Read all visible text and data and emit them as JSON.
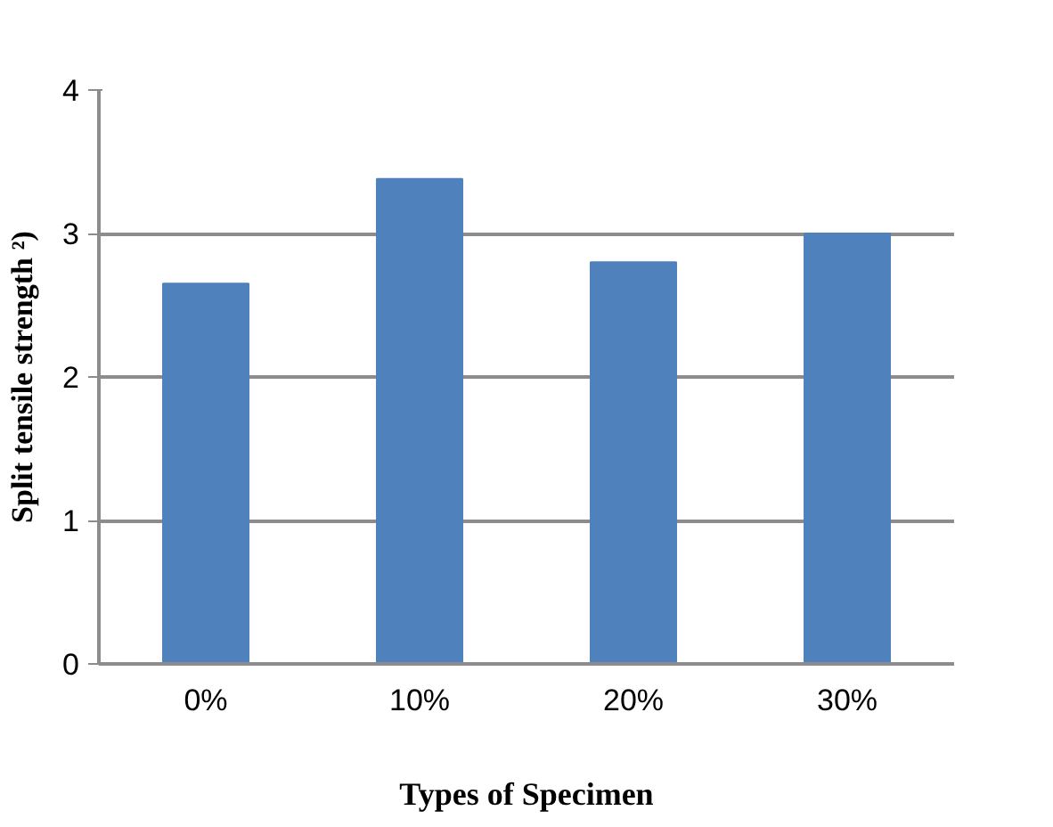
{
  "chart_data": {
    "type": "bar",
    "categories": [
      "0%",
      "10%",
      "20%",
      "30%"
    ],
    "values": [
      2.65,
      3.38,
      2.8,
      3.0
    ],
    "color": "#4f81bd",
    "ylim": [
      0,
      4
    ],
    "yticks": [
      0,
      1,
      2,
      3,
      4
    ],
    "grid": "y",
    "xlabel": "Types of Specimen",
    "ylabel": "Split tensile strength ²)"
  }
}
